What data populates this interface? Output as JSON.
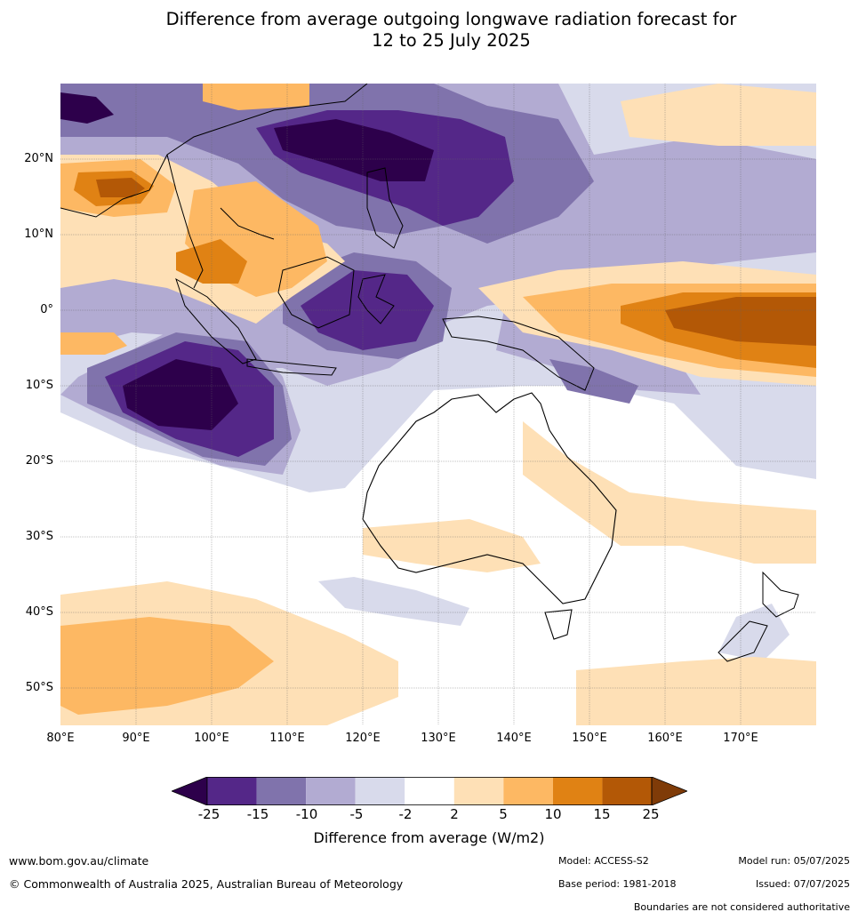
{
  "title": {
    "line1": "Difference from average outgoing longwave radiation forecast for",
    "line2": "12 to 25 July 2025"
  },
  "map": {
    "lat_labels": [
      "20°N",
      "10°N",
      "0°",
      "10°S",
      "20°S",
      "30°S",
      "40°S",
      "50°S"
    ],
    "lon_labels": [
      "80°E",
      "90°E",
      "100°E",
      "110°E",
      "120°E",
      "130°E",
      "140°E",
      "150°E",
      "160°E",
      "170°E"
    ],
    "extent": {
      "lon_min": 80,
      "lon_max": 180,
      "lat_min": -55,
      "lat_max": 30
    }
  },
  "colorbar": {
    "ticks": [
      "-25",
      "-15",
      "-10",
      "-5",
      "-2",
      "2",
      "5",
      "10",
      "15",
      "25"
    ],
    "colors": [
      "#2d004b",
      "#542788",
      "#8073ac",
      "#b2abd2",
      "#d8daeb",
      "#ffffff",
      "#fee0b6",
      "#fdb863",
      "#e08214",
      "#b35806",
      "#7f3b08"
    ],
    "label": "Difference from average (W/m2)"
  },
  "footer": {
    "website": "www.bom.gov.au/climate",
    "copyright": "© Commonwealth of Australia 2025, Australian Bureau of Meteorology",
    "model": "Model: ACCESS-S2",
    "base_period": "Base period: 1981-2018",
    "model_run": "Model run: 05/07/2025",
    "issued": "Issued: 07/07/2025",
    "boundaries": "Boundaries are not considered authoritative"
  }
}
